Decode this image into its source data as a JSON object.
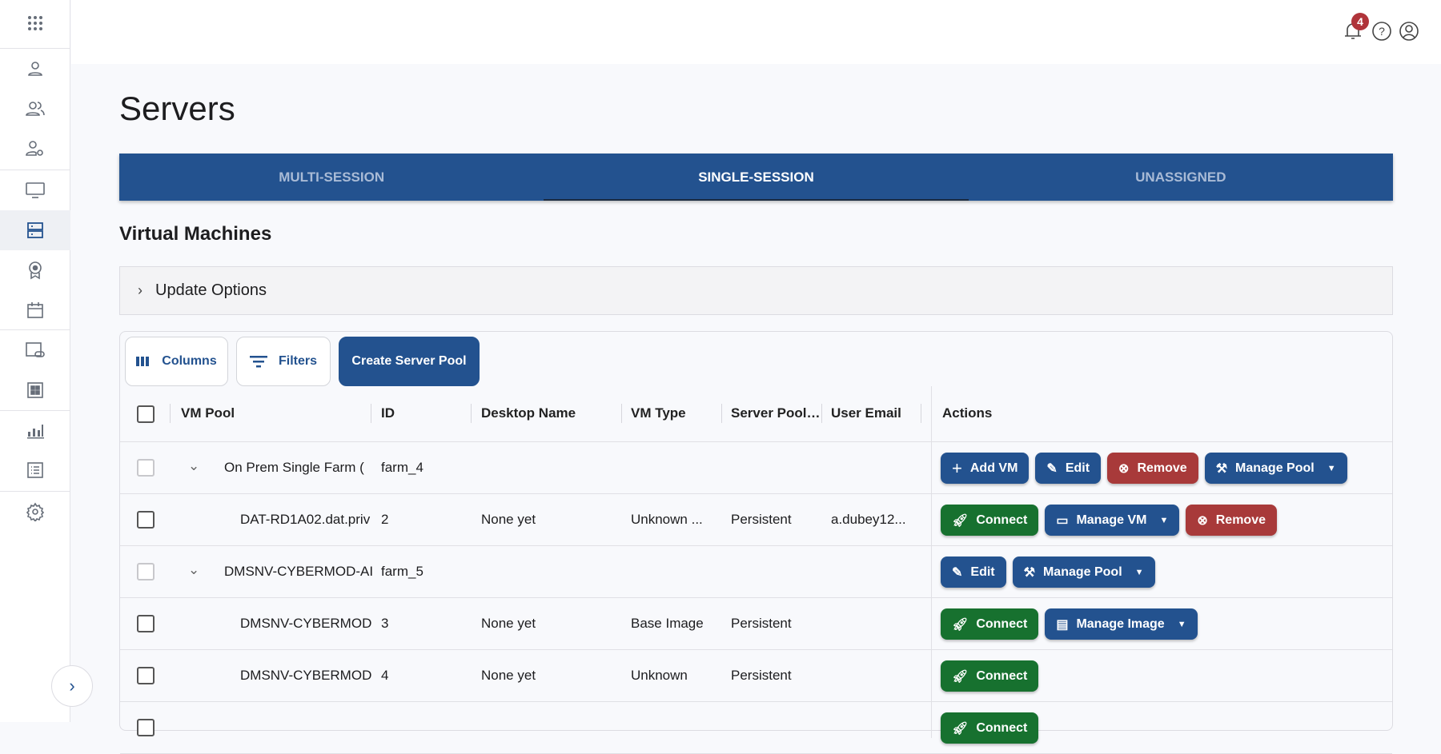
{
  "colors": {
    "primary": "#23528f",
    "success": "#17712f",
    "danger": "#a83a3a",
    "badge": "#b0343a"
  },
  "topbar": {
    "notification_count": "4"
  },
  "page": {
    "title": "Servers",
    "section": "Virtual Machines"
  },
  "tabs": [
    {
      "label": "MULTI-SESSION"
    },
    {
      "label": "SINGLE-SESSION",
      "active": true
    },
    {
      "label": "UNASSIGNED"
    }
  ],
  "update_options": {
    "label": "Update Options"
  },
  "toolbar": {
    "columns": "Columns",
    "filters": "Filters",
    "create": "Create Server Pool"
  },
  "table": {
    "headers": {
      "vm_pool": "VM Pool",
      "id": "ID",
      "desktop": "Desktop Name",
      "vm_type": "VM Type",
      "server_pool": "Server Pool ...",
      "email": "User Email",
      "actions": "Actions"
    },
    "rows": [
      {
        "pool": "On Prem Single Farm (",
        "id": "farm_4",
        "desktop": "",
        "type": "",
        "server_pool": "",
        "email": ""
      },
      {
        "pool": "DAT-RD1A02.dat.priv",
        "id": "2",
        "desktop": "None yet",
        "type": "Unknown ...",
        "server_pool": "Persistent",
        "email": "a.dubey12..."
      },
      {
        "pool": "DMSNV-CYBERMOD-AI",
        "id": "farm_5",
        "desktop": "",
        "type": "",
        "server_pool": "",
        "email": ""
      },
      {
        "pool": "DMSNV-CYBERMOD-",
        "id": "3",
        "desktop": "None yet",
        "type": "Base Image",
        "server_pool": "Persistent",
        "email": ""
      },
      {
        "pool": "DMSNV-CYBERMOD-",
        "id": "4",
        "desktop": "None yet",
        "type": "Unknown",
        "server_pool": "Persistent",
        "email": ""
      }
    ]
  },
  "actions": {
    "add_vm": "Add VM",
    "edit": "Edit",
    "remove": "Remove",
    "manage_pool": "Manage Pool",
    "connect": "Connect",
    "manage_vm": "Manage VM",
    "manage_image": "Manage Image"
  }
}
